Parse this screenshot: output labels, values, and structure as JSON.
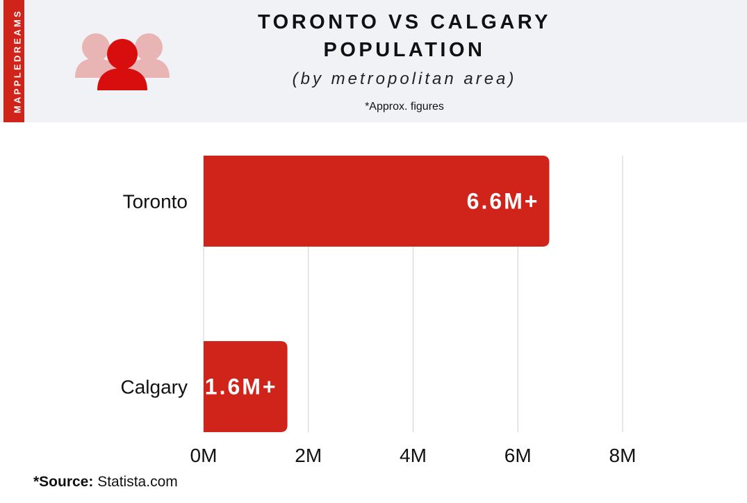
{
  "header": {
    "brand": "MAPPLEDREAMS",
    "title_line1": "TORONTO VS CALGARY",
    "title_line2": "POPULATION",
    "subtitle": "(by metropolitan area)",
    "note": "*Approx. figures",
    "icon": "people-icon"
  },
  "colors": {
    "accent": "#d0241b",
    "icon_dark": "#d80d0d",
    "icon_light": "#e8b4b4",
    "header_bg": "#f1f2f6"
  },
  "footer": {
    "source_prefix": "*Source:",
    "source_text": " Statista.com"
  },
  "chart_data": {
    "type": "bar",
    "orientation": "horizontal",
    "categories": [
      "Toronto",
      "Calgary"
    ],
    "values": [
      6.6,
      1.6
    ],
    "value_labels": [
      "6.6M+",
      "1.6M+"
    ],
    "xlim": [
      0,
      8
    ],
    "ticks": [
      0,
      2,
      4,
      6,
      8
    ],
    "tick_labels": [
      "0M",
      "2M",
      "4M",
      "6M",
      "8M"
    ],
    "grid": true,
    "legend": "none",
    "xlabel": "",
    "ylabel": ""
  }
}
